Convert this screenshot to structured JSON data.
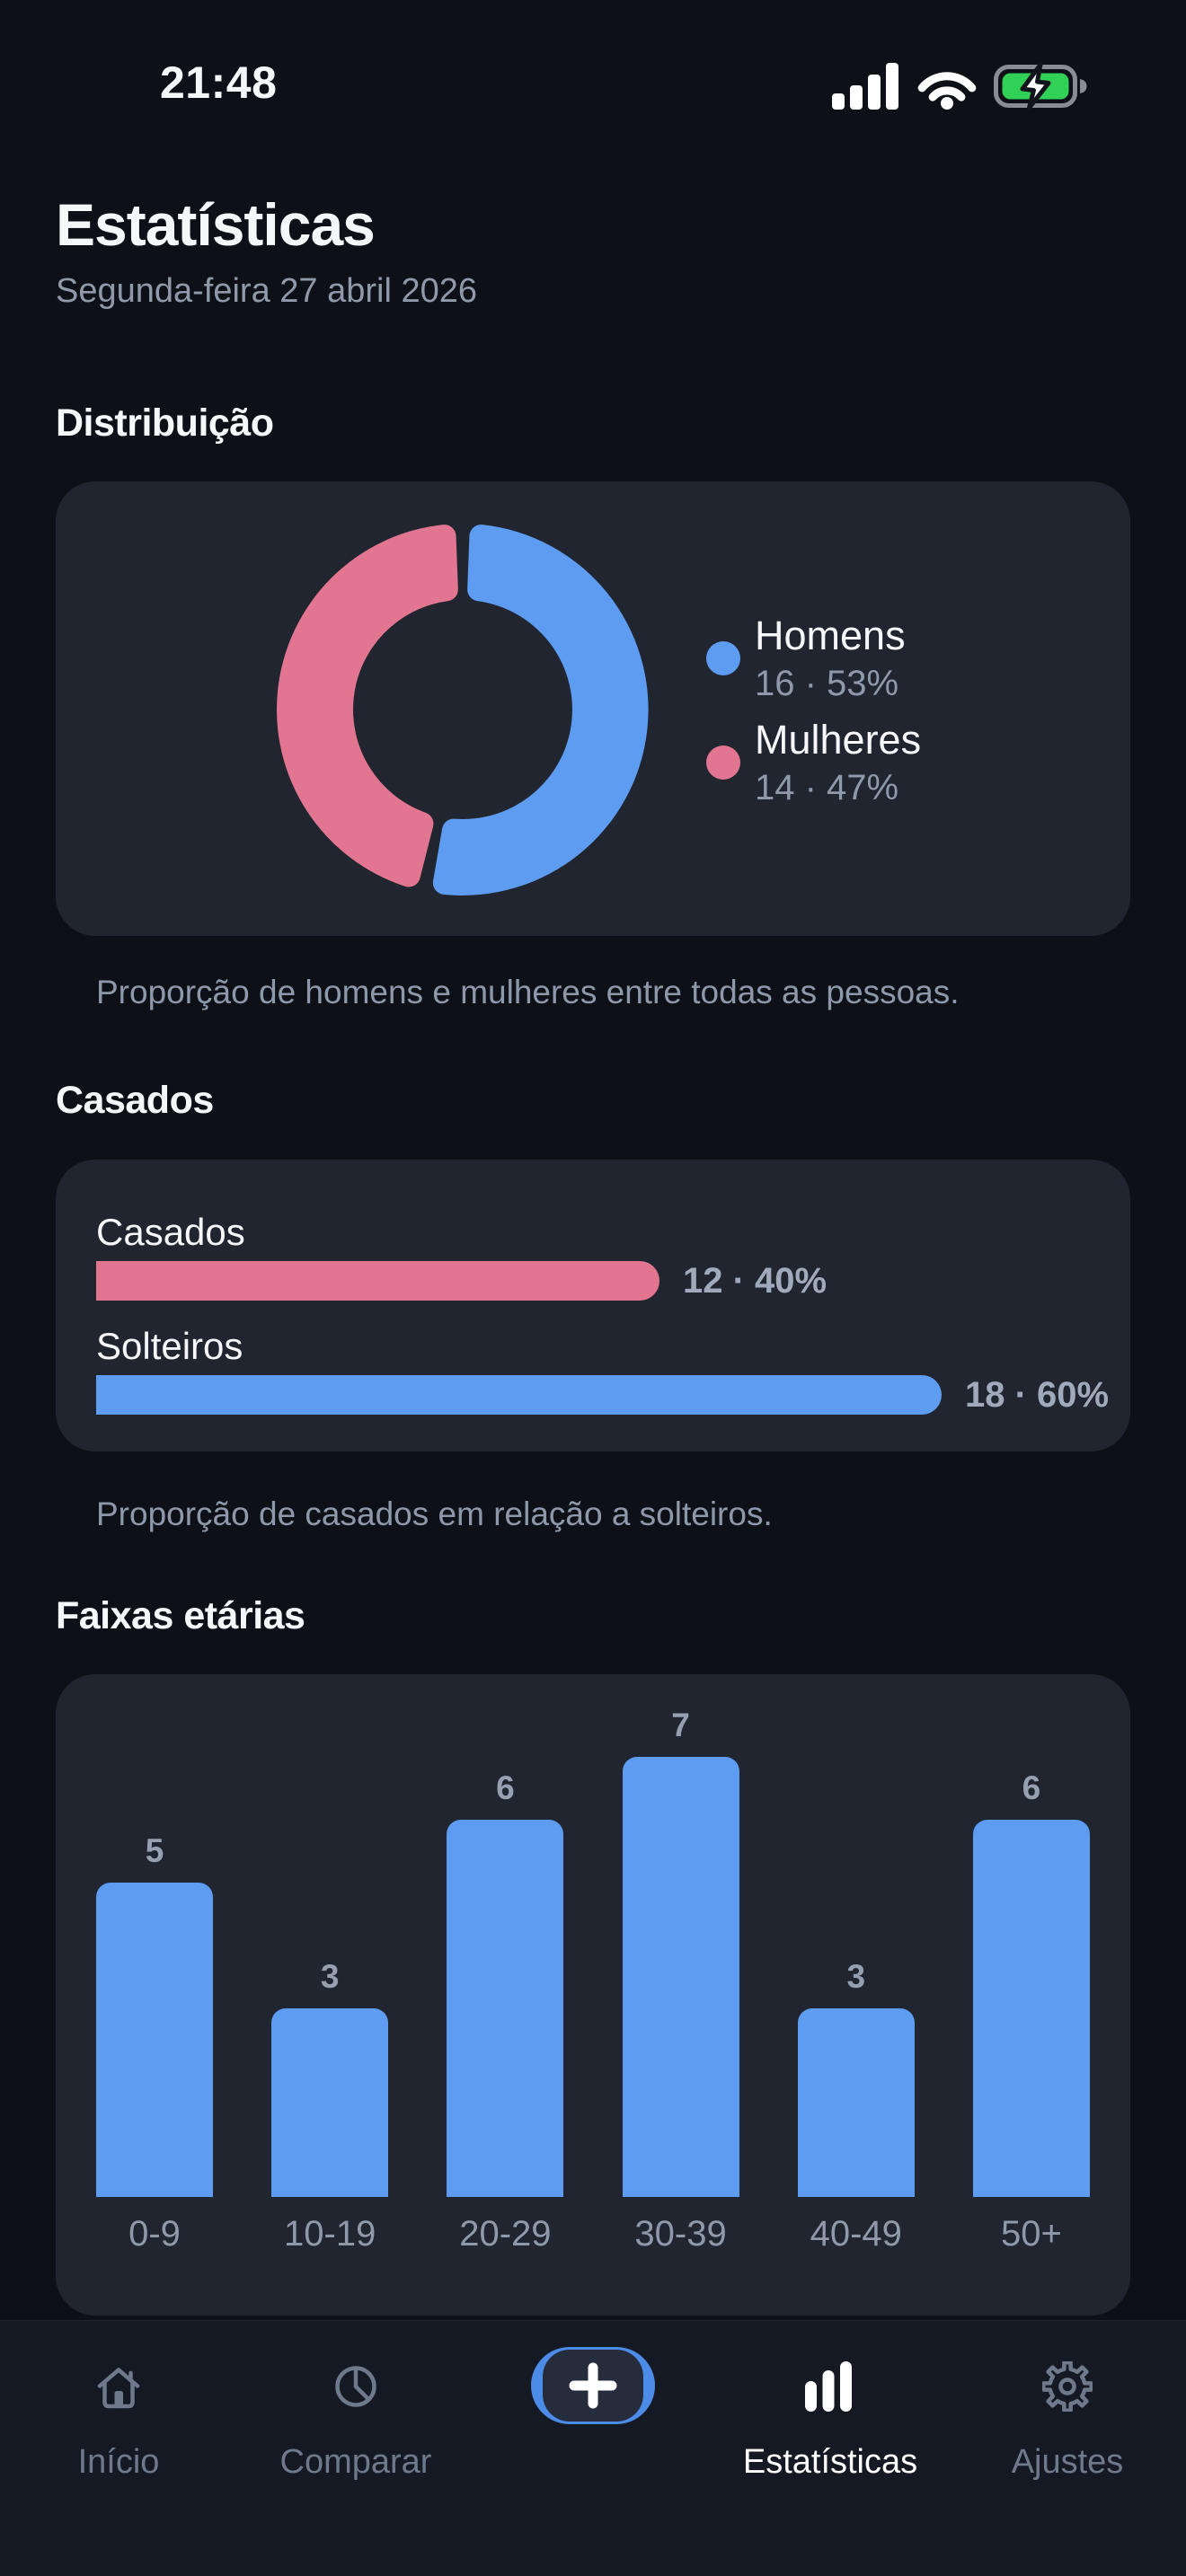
{
  "status_bar": {
    "time": "21:48",
    "icons": [
      "cellular-signal",
      "wifi",
      "battery-charging"
    ]
  },
  "header": {
    "title": "Estatísticas",
    "date": "Segunda-feira 27 abril 2026"
  },
  "colors": {
    "background": "#0d1016",
    "card": "#20252f",
    "tab_bar": "#151923",
    "blue": "#5d9cf0",
    "pink": "#e27691",
    "text": "#f5f7fa",
    "muted": "#8f99aa",
    "battery_green": "#31d158",
    "plus_blue": "#4c8ce8"
  },
  "sections": {
    "distribution": {
      "heading": "Distribuição",
      "caption": "Proporção de homens e mulheres entre todas as pessoas.",
      "legend": [
        {
          "name": "Homens",
          "detail": "16 · 53%",
          "color": "#5d9cf0"
        },
        {
          "name": "Mulheres",
          "detail": "14 · 47%",
          "color": "#e27691"
        }
      ]
    },
    "married": {
      "heading": "Casados",
      "caption": "Proporção de casados em relação a solteiros.",
      "rows": [
        {
          "label": "Casados",
          "value": 12,
          "detail": "12 · 40%",
          "color": "#e27691"
        },
        {
          "label": "Solteiros",
          "value": 18,
          "detail": "18 · 60%",
          "color": "#5d9cf0"
        }
      ]
    },
    "ages": {
      "heading": "Faixas etárias"
    }
  },
  "chart_data": [
    {
      "type": "pie",
      "donut": true,
      "title": "Distribuição",
      "labels": [
        "Homens",
        "Mulheres"
      ],
      "values": [
        16,
        14
      ],
      "percents": [
        53,
        47
      ],
      "colors": [
        "#5d9cf0",
        "#e27691"
      ],
      "legend_position": "right"
    },
    {
      "type": "bar",
      "orientation": "horizontal",
      "title": "Casados",
      "categories": [
        "Casados",
        "Solteiros"
      ],
      "values": [
        12,
        18
      ],
      "percents": [
        40,
        60
      ],
      "colors": [
        "#e27691",
        "#5d9cf0"
      ]
    },
    {
      "type": "bar",
      "title": "Faixas etárias",
      "categories": [
        "0-9",
        "10-19",
        "20-29",
        "30-39",
        "40-49",
        "50+"
      ],
      "values": [
        5,
        3,
        6,
        7,
        3,
        6
      ],
      "color": "#5d9cf0",
      "ylim": [
        0,
        7
      ],
      "grid": false
    }
  ],
  "tab_bar": {
    "items": [
      {
        "id": "inicio",
        "label": "Início",
        "icon": "home-icon",
        "active": false
      },
      {
        "id": "comparar",
        "label": "Comparar",
        "icon": "pie-chart-icon",
        "active": false
      },
      {
        "id": "add",
        "label": "",
        "icon": "plus-icon",
        "active": false
      },
      {
        "id": "estatisticas",
        "label": "Estatísticas",
        "icon": "bar-chart-icon",
        "active": true
      },
      {
        "id": "ajustes",
        "label": "Ajustes",
        "icon": "gear-icon",
        "active": false
      }
    ]
  }
}
